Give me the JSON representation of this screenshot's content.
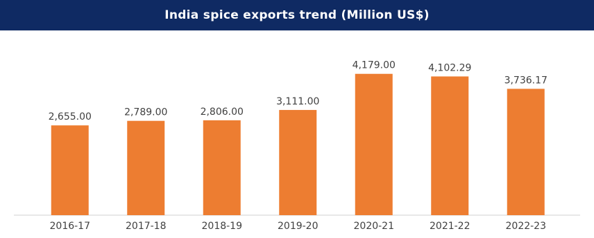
{
  "colors": {
    "banner": "#0f2a63",
    "bar": "#ed7d31",
    "text": "#404040",
    "axis": "#d0d0d0"
  },
  "chart_data": {
    "type": "bar",
    "title": "India spice exports trend (Million US$)",
    "categories": [
      "2016-17",
      "2017-18",
      "2018-19",
      "2019-20",
      "2020-21",
      "2021-22",
      "2022-23"
    ],
    "values": [
      2655.0,
      2789.0,
      2806.0,
      3111.0,
      4179.0,
      4102.29,
      3736.17
    ],
    "data_labels": [
      "2,655.00",
      "2,789.00",
      "2,806.00",
      "3,111.00",
      "4,179.00",
      "4,102.29",
      "3,736.17"
    ],
    "xlabel": "",
    "ylabel": "",
    "grid": false,
    "legend": "none"
  }
}
